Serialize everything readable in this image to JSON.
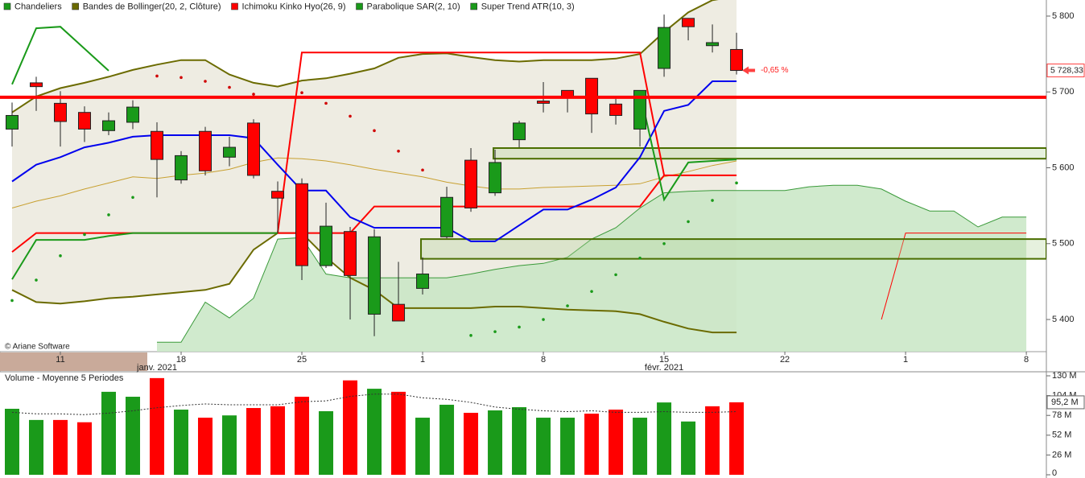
{
  "chart_data": [
    {
      "type": "candlestick",
      "copyright": "© Ariane Software",
      "x": [
        0,
        1,
        2,
        3,
        4,
        5,
        6,
        7,
        8,
        9,
        10,
        11,
        12,
        13,
        14,
        15,
        16,
        17,
        18,
        19,
        20,
        21,
        22,
        23,
        24,
        25,
        26,
        27,
        28,
        29,
        30,
        31,
        32,
        33,
        34,
        35,
        36,
        37,
        38,
        39,
        40,
        41,
        42
      ],
      "xlim": [
        -0.5,
        42.83
      ],
      "xticks": [
        {
          "value": 2,
          "label": "11"
        },
        {
          "value": 7,
          "label": "18"
        },
        {
          "value": 12,
          "label": "25"
        },
        {
          "value": 17,
          "label": "1"
        },
        {
          "value": 22,
          "label": "8"
        },
        {
          "value": 27,
          "label": "15"
        },
        {
          "value": 32,
          "label": "22"
        },
        {
          "value": 37,
          "label": "1"
        },
        {
          "value": 42,
          "label": "8"
        }
      ],
      "month_ticks": [
        {
          "value": 6,
          "label": "janv. 2021"
        },
        {
          "value": 27,
          "label": "févr. 2021"
        }
      ],
      "ylim": [
        5357.6,
        5821.2
      ],
      "yticks": [
        {
          "value": 5400,
          "label": "5 400"
        },
        {
          "value": 5500,
          "label": "5 500"
        },
        {
          "value": 5600,
          "label": "5 600"
        },
        {
          "value": 5700,
          "label": "5 700"
        },
        {
          "value": 5800,
          "label": "5 800"
        }
      ],
      "grid": false,
      "last_price": {
        "value": 5728.33,
        "label": "5 728,33"
      },
      "change": {
        "value": -0.65,
        "label": "-0,65 %"
      },
      "levels": [
        5693
      ],
      "level_color": "#ff0000",
      "zones": [
        {
          "x": 20,
          "low": 5612,
          "high": 5626
        },
        {
          "x": 17,
          "low": 5480,
          "high": 5506
        }
      ],
      "series": [
        {
          "name": "Chandeliers",
          "color": "#1a9a1a",
          "up_color": "#1a9a1a",
          "down_color": "#ff0000",
          "open": [
            5651,
            5712,
            5685,
            5673,
            5649,
            5660,
            5648,
            5584,
            5648,
            5614,
            5659,
            5569,
            5579,
            5471,
            5516,
            5407,
            5420,
            5441,
            5509,
            5610,
            5567,
            5637,
            5688,
            5702,
            5718,
            5684,
            5651,
            5731,
            5797,
            5761,
            5756,
            null,
            null,
            null,
            null,
            null,
            null,
            null,
            null,
            null,
            null,
            null,
            null
          ],
          "high": [
            5686,
            5720,
            5701,
            5681,
            5673,
            5689,
            5660,
            5622,
            5654,
            5641,
            5664,
            5582,
            5586,
            5554,
            5522,
            5519,
            5476,
            5482,
            5575,
            5626,
            5624,
            5662,
            5713,
            5702,
            5718,
            5691,
            5702,
            5802,
            5797,
            5789,
            5778,
            null,
            null,
            null,
            null,
            null,
            null,
            null,
            null,
            null,
            null,
            null,
            null
          ],
          "low": [
            5628,
            5675,
            5628,
            5634,
            5643,
            5651,
            5561,
            5579,
            5590,
            5602,
            5586,
            5514,
            5452,
            5468,
            5400,
            5378,
            5398,
            5433,
            5507,
            5542,
            5563,
            5627,
            5673,
            5673,
            5646,
            5657,
            5628,
            5720,
            5768,
            5752,
            5723,
            null,
            null,
            null,
            null,
            null,
            null,
            null,
            null,
            null,
            null,
            null,
            null
          ],
          "close": [
            5669,
            5707,
            5661,
            5651,
            5662,
            5680,
            5611,
            5616,
            5596,
            5627,
            5590,
            5560,
            5471,
            5523,
            5458,
            5509,
            5398,
            5460,
            5561,
            5547,
            5607,
            5659,
            5685,
            5692,
            5671,
            5669,
            5702,
            5785,
            5786,
            5765,
            5728.33,
            null,
            null,
            null,
            null,
            null,
            null,
            null,
            null,
            null,
            null,
            null,
            null
          ]
        },
        {
          "name": "Bandes de Bollinger(20, 2, Clôture)",
          "color": "#6b6b00",
          "middle_color": "#c8a030",
          "fill": "#eeece2",
          "upper": [
            5673,
            5694,
            5705,
            5712,
            5720,
            5729,
            5736,
            5742,
            5742,
            5723,
            5712,
            5707,
            5715,
            5718,
            5724,
            5731,
            5745,
            5750,
            5751,
            5746,
            5742,
            5740,
            5742,
            5742,
            5742,
            5744,
            5750,
            5779,
            5805,
            5821,
            5826,
            null,
            null,
            null,
            null,
            null,
            null,
            null,
            null,
            null,
            null,
            null,
            null
          ],
          "middle": [
            5547,
            5556,
            5563,
            5572,
            5580,
            5588,
            5586,
            5590,
            5593,
            5598,
            5607,
            5613,
            5612,
            5609,
            5604,
            5598,
            5593,
            5588,
            5581,
            5576,
            5572,
            5572,
            5574,
            5575,
            5576,
            5577,
            5579,
            5588,
            5595,
            5603,
            5609,
            null,
            null,
            null,
            null,
            null,
            null,
            null,
            null,
            null,
            null,
            null,
            null
          ],
          "lower": [
            5439,
            5423,
            5421,
            5424,
            5428,
            5430,
            5433,
            5436,
            5439,
            5447,
            5492,
            5514,
            5514,
            5482,
            5455,
            5439,
            5415,
            5415,
            5415,
            5415,
            5417,
            5417,
            5415,
            5413,
            5412,
            5411,
            5407,
            5397,
            5388,
            5383,
            5383,
            null,
            null,
            null,
            null,
            null,
            null,
            null,
            null,
            null,
            null,
            null,
            null
          ]
        },
        {
          "name": "Ichimoku Kinko Hyo(26, 9)",
          "color": "#ff0000",
          "tenkan_color": "#0000ee",
          "cloud_color": "#c8e6c4",
          "cloud_line": "#3a9a3a",
          "tenkan": [
            5582,
            5604,
            5614,
            5627,
            5633,
            5641,
            5643,
            5643,
            5643,
            5643,
            5639,
            5604,
            5570,
            5570,
            5535,
            5521,
            5521,
            5521,
            5521,
            5503,
            5503,
            5524,
            5545,
            5545,
            5558,
            5574,
            5614,
            5675,
            5683,
            5714,
            5714,
            null,
            null,
            null,
            null,
            null,
            null,
            null,
            null,
            null,
            null,
            null,
            null
          ],
          "kijun": [
            5489,
            5514,
            5514,
            5514,
            5514,
            5514,
            5514,
            5514,
            5514,
            5514,
            5514,
            5514,
            5514,
            5514,
            5514,
            5549,
            5549,
            5549,
            5549,
            5549,
            5549,
            5549,
            5549,
            5549,
            5549,
            5549,
            5549,
            5590,
            5590,
            5590,
            5590,
            null,
            null,
            null,
            null,
            null,
            null,
            null,
            null,
            null,
            null,
            null,
            null
          ],
          "chikou": [
            null,
            null,
            null,
            null,
            null,
            null,
            null,
            null,
            null,
            null,
            null,
            5514,
            5752,
            5752,
            5752,
            5752,
            5752,
            5752,
            5752,
            5752,
            5752,
            5752,
            5752,
            5752,
            5752,
            5752,
            5752,
            5590,
            null,
            null,
            null,
            null,
            null,
            null,
            null,
            null,
            null,
            null,
            null,
            null,
            null,
            null,
            null
          ],
          "span_a": [
            null,
            null,
            null,
            null,
            null,
            null,
            5370,
            5370,
            5423,
            5402,
            5428,
            5506,
            5508,
            5460,
            5455,
            5455,
            5455,
            5455,
            5455,
            5460,
            5466,
            5471,
            5474,
            5482,
            5506,
            5521,
            5547,
            5567,
            5569,
            5570,
            5570,
            5570,
            5570,
            5575,
            5577,
            5577,
            5572,
            5556,
            5543,
            5543,
            5522,
            5535,
            5535
          ],
          "span_b": [
            null,
            null,
            null,
            null,
            null,
            null,
            null,
            null,
            null,
            null,
            null,
            null,
            null,
            null,
            null,
            null,
            null,
            null,
            null,
            null,
            null,
            null,
            null,
            null,
            null,
            null,
            null,
            null,
            null,
            null,
            null,
            null,
            null,
            null,
            null,
            null,
            5400,
            5514,
            5514,
            5514,
            5514,
            5514,
            5514
          ]
        },
        {
          "name": "Parabolique SAR(2, 10)",
          "color": "#1a9a1a",
          "color_above": "#d00000",
          "values": [
            5425,
            5452,
            5484,
            5512,
            5538,
            5561,
            5721,
            5719,
            5714,
            5706,
            5697,
            null,
            5699,
            5685,
            5668,
            5649,
            5622,
            5597,
            null,
            5379,
            5384,
            5390,
            5400,
            5418,
            5437,
            5459,
            5481,
            5500,
            5529,
            5557,
            5580,
            null,
            null,
            null,
            null,
            null,
            null,
            null,
            null,
            null,
            null,
            null,
            null
          ]
        },
        {
          "name": "Super Trend ATR(10, 3)",
          "color": "#1a9a1a",
          "values": [
            5453,
            5505,
            5505,
            5505,
            5510,
            5514,
            5514,
            5514,
            5514,
            5514,
            5514,
            5514,
            null,
            null,
            null,
            null,
            null,
            null,
            null,
            null,
            null,
            null,
            null,
            null,
            null,
            null,
            5700,
            5558,
            5607,
            5609,
            5611,
            null,
            null,
            null,
            null,
            null,
            null,
            null,
            null,
            null,
            null,
            null,
            null
          ],
          "upper": [
            5710,
            5784,
            5786,
            5757,
            5728,
            null,
            null,
            null,
            null,
            null,
            null,
            null,
            null,
            null,
            null,
            null,
            null,
            null,
            null,
            null,
            null,
            null,
            null,
            null,
            null,
            null,
            null,
            null,
            null,
            null,
            null,
            null,
            null,
            null,
            null,
            null,
            null,
            null,
            null,
            null,
            null,
            null,
            null
          ]
        }
      ]
    },
    {
      "type": "bar",
      "title": "Volume  - Moyenne 5 Periodes",
      "x": [
        0,
        1,
        2,
        3,
        4,
        5,
        6,
        7,
        8,
        9,
        10,
        11,
        12,
        13,
        14,
        15,
        16,
        17,
        18,
        19,
        20,
        21,
        22,
        23,
        24,
        25,
        26,
        27,
        28,
        29,
        30
      ],
      "xlim": [
        -0.5,
        42.83
      ],
      "ylim": [
        0,
        135.3
      ],
      "yticks": [
        0,
        {
          "value": 26,
          "label": "26 M"
        },
        {
          "value": 52,
          "label": "52 M"
        },
        {
          "value": 78,
          "label": "78 M"
        },
        {
          "value": 104,
          "label": "104 M"
        },
        {
          "value": 130,
          "label": "130 M"
        }
      ],
      "up_color": "#1a9a1a",
      "down_color": "#ff0000",
      "ma_color": "#333333",
      "values": [
        86.7,
        72,
        72,
        69,
        109,
        102.5,
        127,
        85.6,
        75,
        78,
        87.7,
        90,
        102.5,
        83.5,
        124,
        113,
        109,
        75,
        92,
        81.4,
        84.6,
        88.8,
        75,
        75,
        80.3,
        85.6,
        75,
        95,
        70,
        90,
        95.2
      ],
      "ma": [
        82,
        80,
        80,
        79,
        81,
        84,
        88,
        91,
        93,
        92,
        92,
        92,
        96,
        97,
        103,
        106,
        106,
        101,
        99,
        95,
        89,
        86,
        84,
        83,
        84,
        82,
        82,
        83,
        82,
        82,
        83
      ],
      "last_value": {
        "value": 95.2,
        "label": "95,2 M"
      }
    }
  ]
}
